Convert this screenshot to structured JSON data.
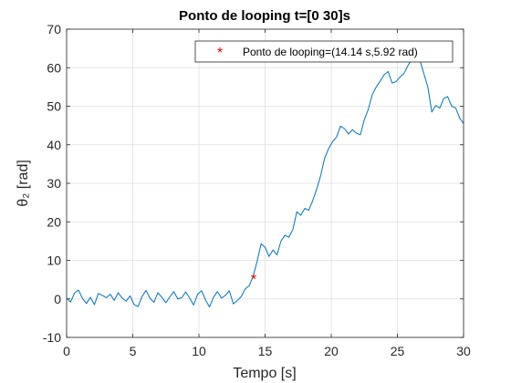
{
  "chart_data": {
    "type": "line",
    "title": "Ponto de looping t=[0 30]s",
    "xlabel": "Tempo [s]",
    "ylabel": "θ₂ [rad]",
    "xlim": [
      0,
      30
    ],
    "ylim": [
      -10,
      70
    ],
    "xticks": [
      0,
      5,
      10,
      15,
      20,
      25,
      30
    ],
    "yticks": [
      -10,
      0,
      10,
      20,
      30,
      40,
      50,
      60,
      70
    ],
    "grid": true,
    "legend": {
      "position": "top-right",
      "entries": [
        "Ponto de looping=(14.14 s,5.92 rad)"
      ]
    },
    "series": [
      {
        "color": "#0072bd",
        "x": [
          0,
          0.3,
          0.6,
          0.9,
          1.2,
          1.5,
          1.8,
          2.1,
          2.4,
          2.7,
          3.0,
          3.3,
          3.6,
          3.9,
          4.2,
          4.5,
          4.8,
          5.1,
          5.4,
          5.7,
          6.0,
          6.3,
          6.6,
          6.9,
          7.2,
          7.5,
          7.8,
          8.1,
          8.4,
          8.7,
          9.0,
          9.3,
          9.6,
          9.9,
          10.2,
          10.5,
          10.8,
          11.1,
          11.4,
          11.7,
          12.0,
          12.3,
          12.6,
          12.9,
          13.2,
          13.5,
          13.8,
          14.1,
          14.4,
          14.7,
          15.0,
          15.3,
          15.6,
          15.9,
          16.2,
          16.5,
          16.8,
          17.1,
          17.4,
          17.7,
          18.0,
          18.3,
          18.6,
          18.9,
          19.2,
          19.5,
          19.8,
          20.1,
          20.4,
          20.7,
          21.0,
          21.3,
          21.6,
          21.9,
          22.2,
          22.5,
          22.8,
          23.1,
          23.4,
          23.7,
          24.0,
          24.3,
          24.6,
          24.9,
          25.2,
          25.5,
          25.8,
          26.1,
          26.4,
          26.7,
          27.0,
          27.3,
          27.6,
          27.9,
          28.2,
          28.5,
          28.8,
          29.1,
          29.4,
          29.7,
          30.0
        ],
        "y": [
          0.2,
          -0.8,
          1.5,
          2.3,
          0.1,
          -1.2,
          0.4,
          -1.5,
          1.4,
          0.9,
          0.3,
          1.2,
          -0.4,
          1.6,
          0.2,
          -0.6,
          0.8,
          -1.5,
          -2.0,
          0.6,
          2.2,
          0.2,
          -0.9,
          1.6,
          0.4,
          -1.0,
          0.5,
          1.9,
          0.0,
          0.3,
          1.8,
          0.2,
          -1.6,
          1.2,
          2.1,
          -0.3,
          -2.1,
          0.4,
          1.9,
          0.2,
          0.9,
          2.1,
          -1.3,
          -0.4,
          0.6,
          2.6,
          3.4,
          5.9,
          9.8,
          14.3,
          13.4,
          11.0,
          12.7,
          11.4,
          15.0,
          16.5,
          16.0,
          18.0,
          22.6,
          21.7,
          23.5,
          23.0,
          25.5,
          28.5,
          32.0,
          36.5,
          39.0,
          40.8,
          42.0,
          44.8,
          44.2,
          42.8,
          43.9,
          43.0,
          42.6,
          46.5,
          49.2,
          53.0,
          55.0,
          56.5,
          58.2,
          59.0,
          56.0,
          56.4,
          57.6,
          58.5,
          60.6,
          62.2,
          61.7,
          62.0,
          58.5,
          55.0,
          48.5,
          50.2,
          49.5,
          52.0,
          52.5,
          50.0,
          49.6,
          47.0,
          45.5
        ]
      }
    ],
    "marker": {
      "x": 14.14,
      "y": 5.92,
      "symbol": "*",
      "color": "#e00000"
    }
  }
}
